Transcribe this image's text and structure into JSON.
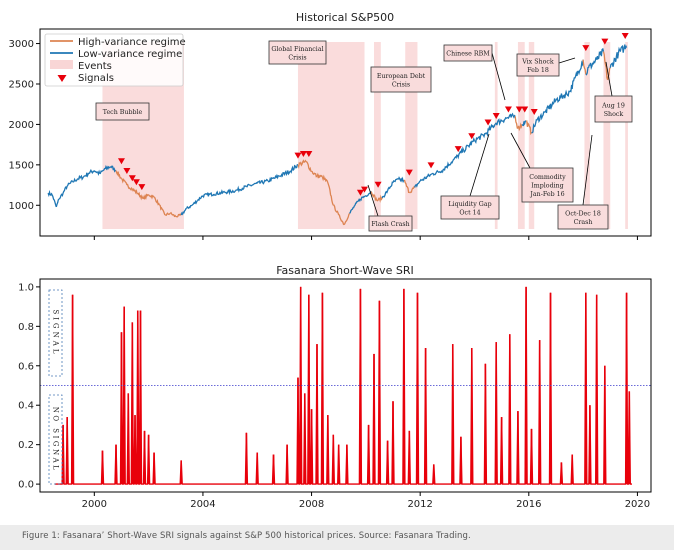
{
  "chart_data": [
    {
      "type": "line",
      "title": "Historical S&P500",
      "xlabel": "",
      "ylabel": "",
      "xlim": [
        1998.0,
        2020.5
      ],
      "ylim": [
        620,
        3180
      ],
      "y_ticks": [
        1000,
        1500,
        2000,
        2500,
        3000
      ],
      "legend": {
        "position": "top-left",
        "entries": [
          {
            "label": "High-variance regime",
            "color": "#dd8452"
          },
          {
            "label": "Low-variance regime",
            "color": "#1f77b4"
          },
          {
            "label": "Events",
            "color": "#f9d6d6"
          },
          {
            "label": "Signals",
            "color": "#e8000b"
          }
        ]
      },
      "series": [
        {
          "name": "S&P 500",
          "x": [
            1998.3,
            1998.45,
            1998.6,
            1998.7,
            1998.85,
            1999.0,
            1999.2,
            1999.4,
            1999.6,
            1999.8,
            2000.0,
            2000.2,
            2000.4,
            2000.6,
            2000.8,
            2001.0,
            2001.2,
            2001.4,
            2001.6,
            2001.8,
            2002.0,
            2002.2,
            2002.4,
            2002.6,
            2002.8,
            2003.0,
            2003.2,
            2003.4,
            2003.6,
            2003.8,
            2004.0,
            2004.4,
            2004.8,
            2005.2,
            2005.6,
            2006.0,
            2006.4,
            2006.8,
            2007.2,
            2007.5,
            2007.8,
            2008.0,
            2008.2,
            2008.4,
            2008.6,
            2008.8,
            2009.0,
            2009.2,
            2009.4,
            2009.6,
            2009.8,
            2010.0,
            2010.2,
            2010.4,
            2010.6,
            2010.8,
            2011.0,
            2011.2,
            2011.4,
            2011.6,
            2011.8,
            2012.0,
            2012.4,
            2012.8,
            2013.2,
            2013.6,
            2014.0,
            2014.4,
            2014.8,
            2015.2,
            2015.5,
            2015.6,
            2015.75,
            2015.9,
            2016.1,
            2016.3,
            2016.6,
            2017.0,
            2017.5,
            2018.0,
            2018.1,
            2018.2,
            2018.5,
            2018.75,
            2018.9,
            2019.0,
            2019.3,
            2019.5,
            2019.6
          ],
          "y": [
            1150,
            1130,
            980,
            1080,
            1150,
            1240,
            1290,
            1330,
            1350,
            1400,
            1430,
            1390,
            1450,
            1480,
            1430,
            1330,
            1250,
            1200,
            1150,
            1080,
            1130,
            1100,
            1000,
            880,
            900,
            860,
            880,
            960,
            1000,
            1060,
            1120,
            1140,
            1160,
            1180,
            1230,
            1270,
            1300,
            1360,
            1420,
            1500,
            1540,
            1420,
            1360,
            1350,
            1280,
            1000,
            880,
            760,
            900,
            1000,
            1080,
            1120,
            1170,
            1060,
            1090,
            1180,
            1280,
            1320,
            1310,
            1160,
            1220,
            1300,
            1380,
            1430,
            1550,
            1680,
            1800,
            1880,
            2020,
            2080,
            2100,
            1950,
            2000,
            2040,
            1900,
            2050,
            2150,
            2300,
            2400,
            2800,
            2620,
            2700,
            2800,
            2900,
            2550,
            2700,
            2880,
            2940,
            2950
          ],
          "regime": [
            "L",
            "L",
            "L",
            "L",
            "L",
            "L",
            "L",
            "L",
            "L",
            "L",
            "L",
            "L",
            "L",
            "L",
            "L",
            "H",
            "H",
            "H",
            "H",
            "H",
            "H",
            "H",
            "H",
            "H",
            "H",
            "H",
            "H",
            "L",
            "L",
            "L",
            "L",
            "L",
            "L",
            "L",
            "L",
            "L",
            "L",
            "L",
            "L",
            "L",
            "H",
            "H",
            "H",
            "H",
            "H",
            "H",
            "H",
            "H",
            "H",
            "L",
            "L",
            "L",
            "L",
            "H",
            "H",
            "L",
            "L",
            "L",
            "L",
            "H",
            "H",
            "L",
            "L",
            "L",
            "L",
            "L",
            "L",
            "L",
            "L",
            "L",
            "L",
            "H",
            "H",
            "L",
            "H",
            "L",
            "L",
            "L",
            "L",
            "L",
            "H",
            "L",
            "L",
            "L",
            "H",
            "H",
            "L",
            "L",
            "L"
          ]
        }
      ],
      "events": [
        {
          "label": "Tech Bubble",
          "start": 2000.3,
          "end": 2003.3
        },
        {
          "label": "Global Financial Crisis",
          "start": 2007.5,
          "end": 2009.95
        },
        {
          "label": "Flash Crash",
          "start": 2010.3,
          "end": 2010.55
        },
        {
          "label": "European Debt Crisis",
          "start": 2011.45,
          "end": 2011.9
        },
        {
          "label": "Liquidity Gap Oct 14",
          "start": 2014.75,
          "end": 2014.85
        },
        {
          "label": "Chinese RBM",
          "start": 2015.6,
          "end": 2015.85
        },
        {
          "label": "Commodity Imploding Jan-Feb 16",
          "start": 2016.0,
          "end": 2016.2
        },
        {
          "label": "Vix Shock Feb 18",
          "start": 2018.05,
          "end": 2018.25
        },
        {
          "label": "Oct-Dec 18 Crash",
          "start": 2018.75,
          "end": 2019.0
        },
        {
          "label": "Aug 19 Shock",
          "start": 2019.55,
          "end": 2019.65
        }
      ],
      "annotations": [
        {
          "text": "Tech Bubble",
          "at": [
            2002.3,
            2080
          ]
        },
        {
          "text": "Global Financial Crisis",
          "at": [
            2008.5,
            2180
          ]
        },
        {
          "text": "European Debt Crisis",
          "at": [
            2012.0,
            2000
          ]
        },
        {
          "text": "Chinese RBM",
          "at": [
            2015.8,
            2820
          ]
        },
        {
          "text": "Vix Shock Feb 18",
          "at": [
            2017.2,
            2650
          ]
        },
        {
          "text": "Flash Crash",
          "at": [
            2010.0,
            870
          ]
        },
        {
          "text": "Liquidity Gap Oct 14",
          "at": [
            2013.7,
            1200
          ]
        },
        {
          "text": "Commodity Imploding Jan-Feb 16",
          "at": [
            2016.7,
            1300
          ]
        },
        {
          "text": "Oct-Dec 18 Crash",
          "at": [
            2018.0,
            900
          ]
        },
        {
          "text": "Aug 19 Shock",
          "at": [
            2020.0,
            1920
          ]
        }
      ],
      "signals": [
        {
          "x": 2001.0,
          "y": 1470
        },
        {
          "x": 2001.2,
          "y": 1350
        },
        {
          "x": 2001.4,
          "y": 1260
        },
        {
          "x": 2001.55,
          "y": 1210
        },
        {
          "x": 2001.75,
          "y": 1150
        },
        {
          "x": 2007.5,
          "y": 1540
        },
        {
          "x": 2007.7,
          "y": 1560
        },
        {
          "x": 2007.9,
          "y": 1560
        },
        {
          "x": 2009.8,
          "y": 1080
        },
        {
          "x": 2009.95,
          "y": 1120
        },
        {
          "x": 2010.45,
          "y": 1180
        },
        {
          "x": 2011.6,
          "y": 1330
        },
        {
          "x": 2012.4,
          "y": 1420
        },
        {
          "x": 2013.4,
          "y": 1620
        },
        {
          "x": 2013.9,
          "y": 1780
        },
        {
          "x": 2014.5,
          "y": 1950
        },
        {
          "x": 2014.8,
          "y": 2030
        },
        {
          "x": 2015.25,
          "y": 2110
        },
        {
          "x": 2015.65,
          "y": 2110
        },
        {
          "x": 2015.85,
          "y": 2110
        },
        {
          "x": 2016.2,
          "y": 2080
        },
        {
          "x": 2018.1,
          "y": 2870
        },
        {
          "x": 2018.8,
          "y": 2950
        },
        {
          "x": 2019.55,
          "y": 3020
        }
      ]
    },
    {
      "type": "line",
      "title": "Fasanara Short-Wave SRI",
      "xlabel": "",
      "ylabel": "",
      "xlim": [
        1998.0,
        2020.5
      ],
      "ylim": [
        -0.04,
        1.04
      ],
      "x_ticks": [
        2000,
        2004,
        2008,
        2012,
        2016,
        2020
      ],
      "y_ticks": [
        0.0,
        0.2,
        0.4,
        0.6,
        0.8,
        1.0
      ],
      "threshold": 0.5,
      "zone_labels": {
        "upper": "SIGNAL",
        "lower": "NO SIGNAL"
      },
      "series": [
        {
          "name": "SRI",
          "color": "#e8000b",
          "spikes": [
            {
              "x": 1998.85,
              "v": 0.3
            },
            {
              "x": 1999.0,
              "v": 0.34
            },
            {
              "x": 1999.2,
              "v": 0.96
            },
            {
              "x": 2000.3,
              "v": 0.17
            },
            {
              "x": 2000.8,
              "v": 0.2
            },
            {
              "x": 2001.0,
              "v": 0.77
            },
            {
              "x": 2001.1,
              "v": 0.9
            },
            {
              "x": 2001.25,
              "v": 0.46
            },
            {
              "x": 2001.4,
              "v": 0.82
            },
            {
              "x": 2001.5,
              "v": 0.35
            },
            {
              "x": 2001.6,
              "v": 0.88
            },
            {
              "x": 2001.7,
              "v": 0.88
            },
            {
              "x": 2001.85,
              "v": 0.27
            },
            {
              "x": 2002.0,
              "v": 0.25
            },
            {
              "x": 2002.2,
              "v": 0.16
            },
            {
              "x": 2003.2,
              "v": 0.12
            },
            {
              "x": 2005.6,
              "v": 0.26
            },
            {
              "x": 2006.0,
              "v": 0.16
            },
            {
              "x": 2006.6,
              "v": 0.15
            },
            {
              "x": 2007.1,
              "v": 0.2
            },
            {
              "x": 2007.5,
              "v": 0.54
            },
            {
              "x": 2007.6,
              "v": 1.0
            },
            {
              "x": 2007.75,
              "v": 0.46
            },
            {
              "x": 2007.9,
              "v": 0.96
            },
            {
              "x": 2008.0,
              "v": 0.38
            },
            {
              "x": 2008.2,
              "v": 0.71
            },
            {
              "x": 2008.4,
              "v": 0.97
            },
            {
              "x": 2008.6,
              "v": 0.35
            },
            {
              "x": 2008.8,
              "v": 0.25
            },
            {
              "x": 2009.0,
              "v": 0.2
            },
            {
              "x": 2009.3,
              "v": 0.2
            },
            {
              "x": 2009.8,
              "v": 0.99
            },
            {
              "x": 2010.1,
              "v": 0.3
            },
            {
              "x": 2010.3,
              "v": 0.66
            },
            {
              "x": 2010.5,
              "v": 0.93
            },
            {
              "x": 2010.8,
              "v": 0.22
            },
            {
              "x": 2011.0,
              "v": 0.42
            },
            {
              "x": 2011.4,
              "v": 0.99
            },
            {
              "x": 2011.6,
              "v": 0.27
            },
            {
              "x": 2011.9,
              "v": 0.97
            },
            {
              "x": 2012.2,
              "v": 0.69
            },
            {
              "x": 2012.5,
              "v": 0.1
            },
            {
              "x": 2013.2,
              "v": 0.71
            },
            {
              "x": 2013.5,
              "v": 0.24
            },
            {
              "x": 2013.9,
              "v": 0.69
            },
            {
              "x": 2014.4,
              "v": 0.61
            },
            {
              "x": 2014.8,
              "v": 0.72
            },
            {
              "x": 2015.0,
              "v": 0.34
            },
            {
              "x": 2015.3,
              "v": 0.76
            },
            {
              "x": 2015.6,
              "v": 0.37
            },
            {
              "x": 2015.9,
              "v": 1.0
            },
            {
              "x": 2016.1,
              "v": 0.28
            },
            {
              "x": 2016.4,
              "v": 0.73
            },
            {
              "x": 2016.8,
              "v": 0.97
            },
            {
              "x": 2017.2,
              "v": 0.11
            },
            {
              "x": 2017.6,
              "v": 0.15
            },
            {
              "x": 2018.1,
              "v": 0.97
            },
            {
              "x": 2018.25,
              "v": 0.4
            },
            {
              "x": 2018.5,
              "v": 0.96
            },
            {
              "x": 2018.8,
              "v": 0.6
            },
            {
              "x": 2019.6,
              "v": 0.97
            },
            {
              "x": 2019.7,
              "v": 0.47
            }
          ]
        }
      ]
    }
  ],
  "caption": "Figure 1: Fasanara’ Short-Wave SRI signals against S&P 500 historical prices.  Source: Fasanara Trading.",
  "colors": {
    "high": "#dd8452",
    "low": "#1f77b4",
    "event": "#f9d6d6",
    "signal": "#e8000b",
    "threshold": "#3b3bcc"
  }
}
